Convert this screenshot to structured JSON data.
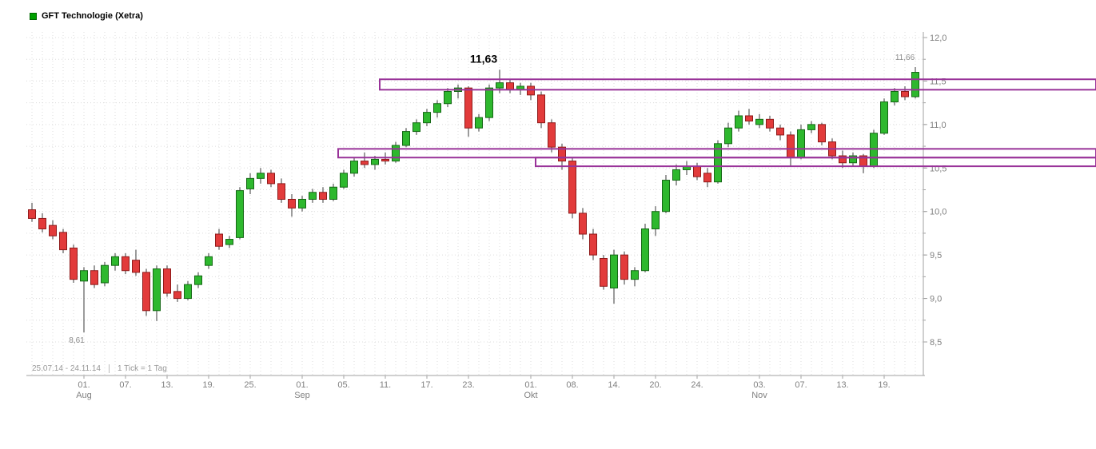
{
  "legend": {
    "title": "GFT Technologie (Xetra)"
  },
  "footer": {
    "range": "25.07.14 - 24.11.14",
    "tick": "1 Tick = 1 Tag"
  },
  "colors": {
    "up": "#2eb82e",
    "up_border": "#156815",
    "down": "#e23b3b",
    "down_border": "#8f1a1a",
    "wick": "#3a3a3a",
    "zone": "#993399",
    "grid": "#dcdcdc",
    "axis": "#a0a0a0",
    "tick_label": "#808080",
    "annotation_gray": "#8a8a8a",
    "annotation_black": "#000000",
    "legend_marker": "#00a000"
  },
  "chart_data": {
    "type": "candlestick",
    "title": "GFT Technologie (Xetra)",
    "period_label": "25.07.14 - 24.11.14",
    "tick_unit": "1 Tick = 1 Tag",
    "ylim": [
      8.25,
      12.1
    ],
    "grid": "dotted",
    "y_axis_side": "right",
    "y_ticks": [
      {
        "p": 12.0,
        "label": "12,0"
      },
      {
        "p": 11.5,
        "label": "11,5"
      },
      {
        "p": 11.0,
        "label": "11,0"
      },
      {
        "p": 10.5,
        "label": "10,5"
      },
      {
        "p": 10.0,
        "label": "10,0"
      },
      {
        "p": 9.5,
        "label": "9,5"
      },
      {
        "p": 9.0,
        "label": "9,0"
      },
      {
        "p": 8.5,
        "label": "8,5"
      }
    ],
    "x_ticks": [
      {
        "i": 5,
        "label": "01.",
        "month": "Aug"
      },
      {
        "i": 9,
        "label": "07."
      },
      {
        "i": 13,
        "label": "13."
      },
      {
        "i": 17,
        "label": "19."
      },
      {
        "i": 21,
        "label": "25."
      },
      {
        "i": 26,
        "label": "01.",
        "month": "Sep"
      },
      {
        "i": 30,
        "label": "05."
      },
      {
        "i": 34,
        "label": "11."
      },
      {
        "i": 38,
        "label": "17."
      },
      {
        "i": 42,
        "label": "23."
      },
      {
        "i": 48,
        "label": "01.",
        "month": "Okt"
      },
      {
        "i": 52,
        "label": "08."
      },
      {
        "i": 56,
        "label": "14."
      },
      {
        "i": 60,
        "label": "20."
      },
      {
        "i": 64,
        "label": "24."
      },
      {
        "i": 70,
        "label": "03.",
        "month": "Nov"
      },
      {
        "i": 74,
        "label": "07."
      },
      {
        "i": 78,
        "label": "13."
      },
      {
        "i": 82,
        "label": "19."
      }
    ],
    "zones": [
      {
        "from_index": 34,
        "price_top": 11.52,
        "price_bottom": 11.4
      },
      {
        "from_index": 30,
        "price_top": 10.72,
        "price_bottom": 10.62
      },
      {
        "from_index": 49,
        "price_top": 10.62,
        "price_bottom": 10.52
      }
    ],
    "annotations": [
      {
        "i": 45,
        "p": 11.63,
        "text": "11,63",
        "kind": "peak"
      },
      {
        "i": 85,
        "p": 11.66,
        "text": "11,66",
        "kind": "last"
      },
      {
        "i": 5,
        "p": 8.61,
        "text": "8,61",
        "kind": "low"
      }
    ],
    "candles": {
      "columns": [
        "date",
        "open",
        "high",
        "low",
        "close"
      ],
      "rows": [
        [
          "25.07",
          10.02,
          10.1,
          9.88,
          9.92
        ],
        [
          "28.07",
          9.92,
          9.98,
          9.76,
          9.8
        ],
        [
          "29.07",
          9.84,
          9.9,
          9.68,
          9.72
        ],
        [
          "30.07",
          9.76,
          9.8,
          9.52,
          9.56
        ],
        [
          "31.07",
          9.58,
          9.62,
          9.18,
          9.22
        ],
        [
          "01.08",
          9.2,
          9.36,
          8.61,
          9.32
        ],
        [
          "04.08",
          9.32,
          9.38,
          9.12,
          9.16
        ],
        [
          "05.08",
          9.18,
          9.42,
          9.14,
          9.38
        ],
        [
          "06.08",
          9.38,
          9.52,
          9.32,
          9.48
        ],
        [
          "07.08",
          9.48,
          9.52,
          9.28,
          9.32
        ],
        [
          "08.08",
          9.44,
          9.56,
          9.26,
          9.3
        ],
        [
          "11.08",
          9.3,
          9.34,
          8.8,
          8.86
        ],
        [
          "12.08",
          8.86,
          9.38,
          8.74,
          9.34
        ],
        [
          "13.08",
          9.34,
          9.38,
          9.02,
          9.06
        ],
        [
          "14.08",
          9.08,
          9.16,
          8.96,
          9.0
        ],
        [
          "15.08",
          9.0,
          9.2,
          8.98,
          9.16
        ],
        [
          "18.08",
          9.16,
          9.3,
          9.12,
          9.26
        ],
        [
          "19.08",
          9.38,
          9.52,
          9.34,
          9.48
        ],
        [
          "20.08",
          9.74,
          9.8,
          9.56,
          9.6
        ],
        [
          "21.08",
          9.62,
          9.72,
          9.58,
          9.68
        ],
        [
          "22.08",
          9.7,
          10.28,
          9.68,
          10.24
        ],
        [
          "25.08",
          10.26,
          10.44,
          10.2,
          10.38
        ],
        [
          "26.08",
          10.38,
          10.5,
          10.32,
          10.44
        ],
        [
          "27.08",
          10.44,
          10.48,
          10.28,
          10.32
        ],
        [
          "28.08",
          10.32,
          10.38,
          10.1,
          10.14
        ],
        [
          "29.08",
          10.14,
          10.2,
          9.94,
          10.04
        ],
        [
          "01.09",
          10.04,
          10.18,
          10.0,
          10.14
        ],
        [
          "02.09",
          10.14,
          10.26,
          10.1,
          10.22
        ],
        [
          "03.09",
          10.22,
          10.28,
          10.1,
          10.14
        ],
        [
          "04.09",
          10.14,
          10.32,
          10.12,
          10.28
        ],
        [
          "05.09",
          10.28,
          10.48,
          10.26,
          10.44
        ],
        [
          "08.09",
          10.44,
          10.62,
          10.4,
          10.58
        ],
        [
          "09.09",
          10.58,
          10.68,
          10.5,
          10.54
        ],
        [
          "10.09",
          10.54,
          10.64,
          10.48,
          10.6
        ],
        [
          "11.09",
          10.6,
          10.68,
          10.54,
          10.58
        ],
        [
          "12.09",
          10.58,
          10.8,
          10.56,
          10.76
        ],
        [
          "15.09",
          10.76,
          10.96,
          10.74,
          10.92
        ],
        [
          "16.09",
          10.92,
          11.06,
          10.88,
          11.02
        ],
        [
          "17.09",
          11.02,
          11.18,
          10.98,
          11.14
        ],
        [
          "18.09",
          11.14,
          11.28,
          11.08,
          11.24
        ],
        [
          "19.09",
          11.24,
          11.42,
          11.2,
          11.38
        ],
        [
          "22.09",
          11.38,
          11.46,
          11.3,
          11.42
        ],
        [
          "23.09",
          11.42,
          11.44,
          10.86,
          10.96
        ],
        [
          "24.09",
          10.96,
          11.12,
          10.92,
          11.08
        ],
        [
          "25.09",
          11.08,
          11.46,
          11.04,
          11.42
        ],
        [
          "26.09",
          11.42,
          11.63,
          11.36,
          11.48
        ],
        [
          "29.09",
          11.48,
          11.52,
          11.36,
          11.4
        ],
        [
          "30.09",
          11.4,
          11.48,
          11.34,
          11.44
        ],
        [
          "01.10",
          11.44,
          11.48,
          11.28,
          11.34
        ],
        [
          "02.10",
          11.34,
          11.38,
          10.96,
          11.02
        ],
        [
          "06.10",
          11.02,
          11.06,
          10.68,
          10.74
        ],
        [
          "07.10",
          10.74,
          10.78,
          10.48,
          10.58
        ],
        [
          "08.10",
          10.58,
          10.62,
          9.92,
          9.98
        ],
        [
          "09.10",
          9.98,
          10.04,
          9.68,
          9.74
        ],
        [
          "10.10",
          9.74,
          9.8,
          9.44,
          9.5
        ],
        [
          "13.10",
          9.46,
          9.5,
          9.1,
          9.14
        ],
        [
          "14.10",
          9.12,
          9.56,
          8.94,
          9.5
        ],
        [
          "15.10",
          9.5,
          9.54,
          9.16,
          9.22
        ],
        [
          "16.10",
          9.22,
          9.36,
          9.14,
          9.32
        ],
        [
          "17.10",
          9.32,
          9.86,
          9.3,
          9.8
        ],
        [
          "20.10",
          9.8,
          10.06,
          9.72,
          10.0
        ],
        [
          "21.10",
          10.0,
          10.42,
          9.98,
          10.36
        ],
        [
          "22.10",
          10.36,
          10.54,
          10.3,
          10.48
        ],
        [
          "23.10",
          10.48,
          10.58,
          10.42,
          10.52
        ],
        [
          "24.10",
          10.52,
          10.56,
          10.36,
          10.4
        ],
        [
          "27.10",
          10.44,
          10.5,
          10.28,
          10.34
        ],
        [
          "28.10",
          10.34,
          10.82,
          10.32,
          10.78
        ],
        [
          "29.10",
          10.78,
          11.02,
          10.74,
          10.96
        ],
        [
          "30.10",
          10.96,
          11.16,
          10.92,
          11.1
        ],
        [
          "31.10",
          11.1,
          11.18,
          11.0,
          11.04
        ],
        [
          "03.11",
          11.0,
          11.12,
          10.96,
          11.06
        ],
        [
          "04.11",
          11.06,
          11.1,
          10.92,
          10.96
        ],
        [
          "05.11",
          10.96,
          11.0,
          10.82,
          10.88
        ],
        [
          "06.11",
          10.88,
          10.92,
          10.52,
          10.62
        ],
        [
          "07.11",
          10.62,
          11.0,
          10.6,
          10.94
        ],
        [
          "10.11",
          10.94,
          11.04,
          10.9,
          11.0
        ],
        [
          "11.11",
          11.0,
          11.02,
          10.76,
          10.8
        ],
        [
          "12.11",
          10.8,
          10.84,
          10.6,
          10.64
        ],
        [
          "13.11",
          10.64,
          10.7,
          10.5,
          10.56
        ],
        [
          "14.11",
          10.56,
          10.68,
          10.52,
          10.64
        ],
        [
          "17.11",
          10.64,
          10.66,
          10.44,
          10.52
        ],
        [
          "18.11",
          10.52,
          10.94,
          10.5,
          10.9
        ],
        [
          "19.11",
          10.9,
          11.3,
          10.88,
          11.26
        ],
        [
          "20.11",
          11.26,
          11.42,
          11.22,
          11.38
        ],
        [
          "21.11",
          11.38,
          11.44,
          11.28,
          11.32
        ],
        [
          "24.11",
          11.32,
          11.66,
          11.3,
          11.6
        ]
      ]
    }
  }
}
